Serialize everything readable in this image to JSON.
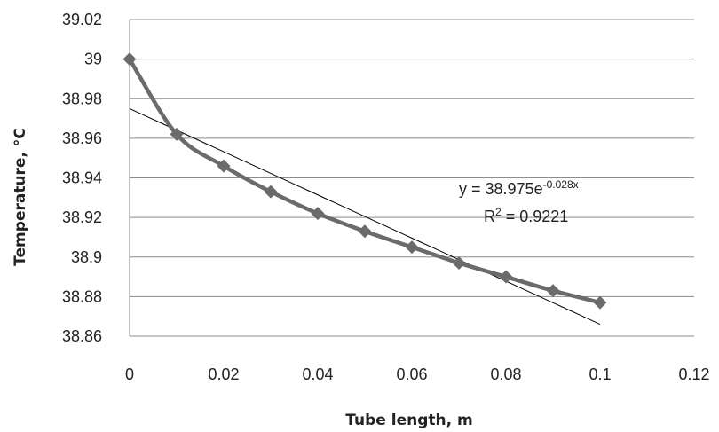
{
  "chart_data": {
    "type": "line",
    "xlabel": "Tube length, m",
    "ylabel": "Temperature, °C",
    "xlim": [
      0,
      0.12
    ],
    "ylim": [
      38.86,
      39.02
    ],
    "x_ticks": [
      "0",
      "0.02",
      "0.04",
      "0.06",
      "0.08",
      "0.1",
      "0.12"
    ],
    "y_ticks": [
      "38.86",
      "38.88",
      "38.9",
      "38.92",
      "38.94",
      "38.96",
      "38.98",
      "39",
      "39.02"
    ],
    "grid": "horizontal",
    "legend": "none",
    "series": [
      {
        "x": [
          0,
          0.01,
          0.02,
          0.03,
          0.04,
          0.05,
          0.06,
          0.07,
          0.08,
          0.09,
          0.1
        ],
        "y": [
          39.0,
          38.962,
          38.946,
          38.933,
          38.922,
          38.913,
          38.905,
          38.897,
          38.89,
          38.883,
          38.877
        ],
        "color": "#6b6b6b",
        "marker": "diamond"
      }
    ],
    "trendline": {
      "type": "exponential",
      "a": 38.975,
      "b": -0.028,
      "x_range": [
        0,
        0.1
      ],
      "color": "#000000"
    },
    "annotation": {
      "equation_prefix": "y = 38.975e",
      "equation_exponent": "-0.028x",
      "r2_prefix": "R",
      "r2_sup": "2",
      "r2_value": " = 0.9221"
    }
  }
}
